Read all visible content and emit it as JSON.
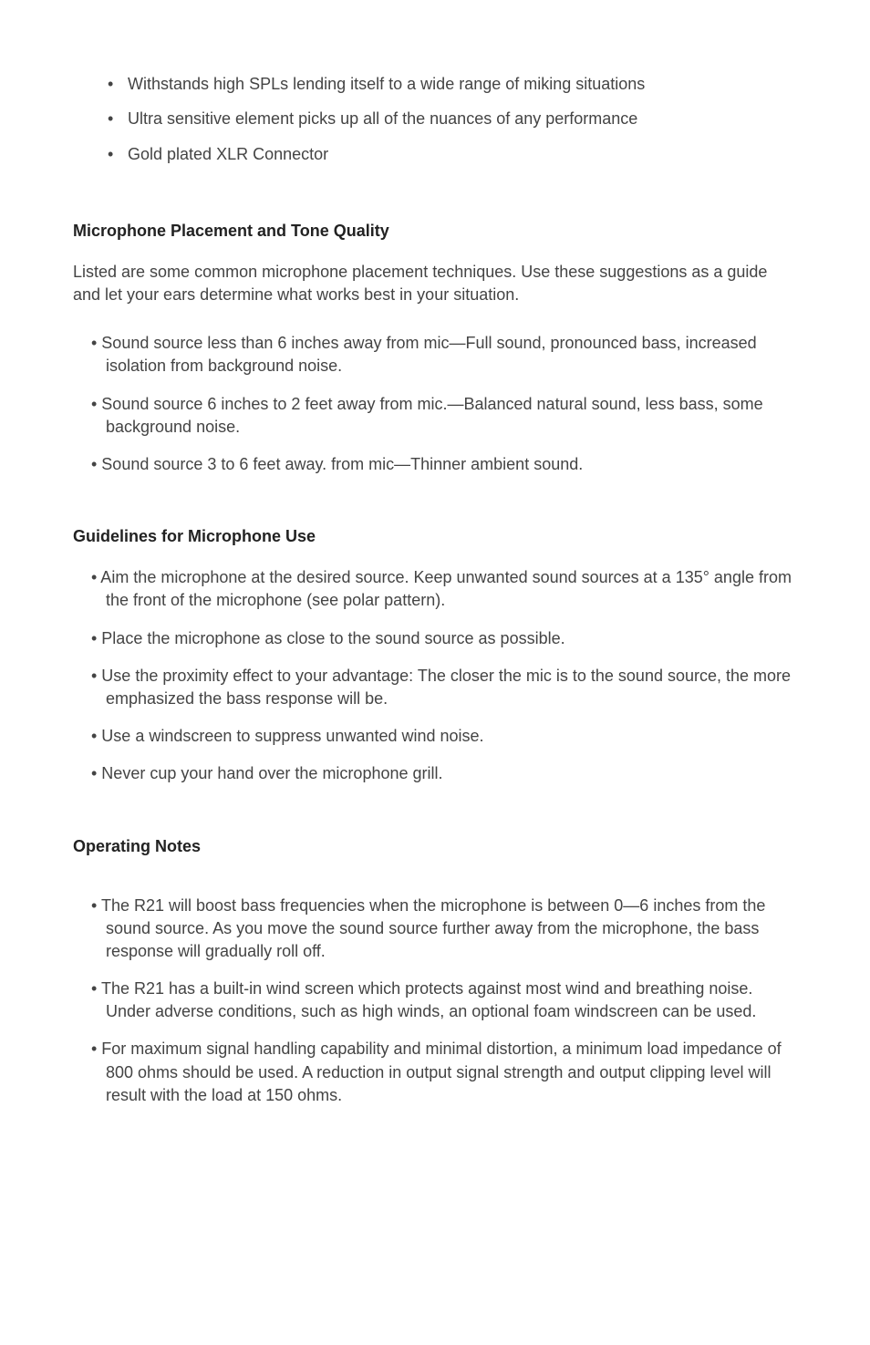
{
  "top_features": {
    "items": [
      "Withstands high SPLs lending itself to a wide range of miking situations",
      "Ultra sensitive element picks up all of the nuances of any performance",
      "Gold plated XLR Connector"
    ]
  },
  "placement": {
    "heading": "Microphone Placement and Tone Quality",
    "intro": "Listed are some common microphone placement techniques. Use these suggestions as a guide and let your ears determine what works best in your situation.",
    "items": [
      "• Sound source less than 6 inches away from mic—Full sound, pronounced bass, increased isolation from background noise.",
      "• Sound source 6 inches to 2 feet away from mic.—Balanced natural sound, less bass, some background noise.",
      "• Sound source 3 to 6 feet away. from mic—Thinner ambient sound."
    ]
  },
  "guidelines": {
    "heading": "Guidelines for Microphone Use",
    "items": [
      "• Aim the microphone at the desired source. Keep unwanted sound sources at a 135° angle from the front of the microphone (see polar pattern).",
      "• Place the microphone as close to the sound source as possible.",
      "• Use the proximity effect to your advantage: The closer the mic is to the sound source, the more emphasized the bass response will be.",
      "• Use a windscreen to suppress unwanted wind noise.",
      "• Never cup your hand over the microphone grill."
    ]
  },
  "operating": {
    "heading": "Operating Notes",
    "items": [
      "• The R21 will boost bass frequencies when the microphone is between 0—6 inches from the sound source. As you move the sound source further away from the microphone, the bass response will gradually roll off.",
      "• The R21 has a built-in wind screen which protects against most wind and breathing noise. Under adverse conditions, such as high winds, an optional foam windscreen can be used.",
      "• For maximum signal handling capability and minimal distortion, a minimum load impedance of 800 ohms should be used. A reduction in output signal strength and output clipping level will result with the load at 150 ohms."
    ]
  }
}
